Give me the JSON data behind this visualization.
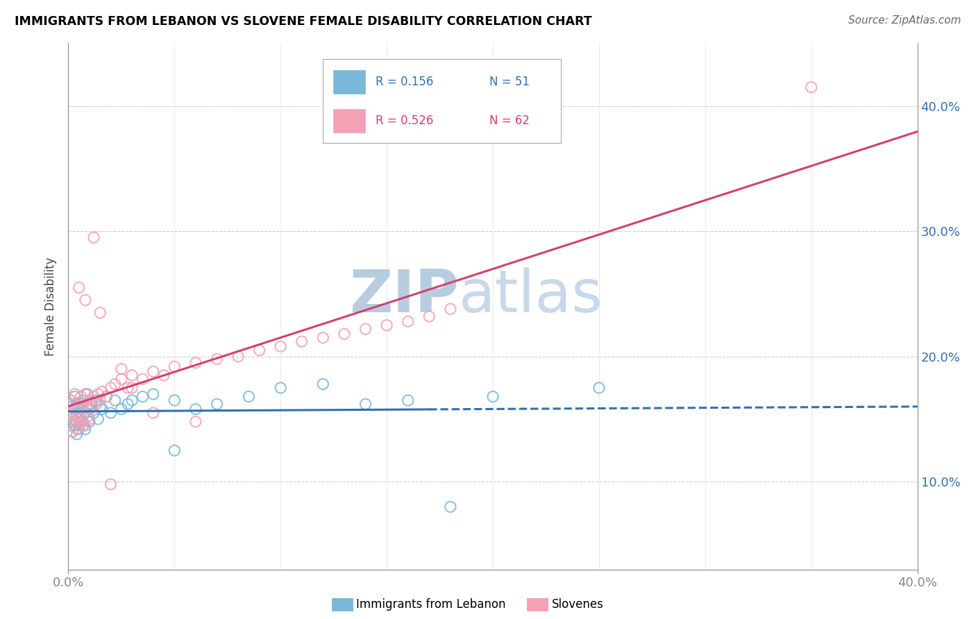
{
  "title": "IMMIGRANTS FROM LEBANON VS SLOVENE FEMALE DISABILITY CORRELATION CHART",
  "source": "Source: ZipAtlas.com",
  "ylabel": "Female Disability",
  "xmin": 0.0,
  "xmax": 0.4,
  "ymin": 0.03,
  "ymax": 0.45,
  "legend_blue_r": "R = 0.156",
  "legend_blue_n": "N = 51",
  "legend_pink_r": "R = 0.526",
  "legend_pink_n": "N = 62",
  "blue_color": "#7ab8d9",
  "pink_color": "#f4a0b5",
  "blue_line_color": "#3070b0",
  "pink_line_color": "#d44070",
  "watermark_zip": "ZIP",
  "watermark_atlas": "atlas",
  "watermark_color": "#c5d8ec",
  "blue_r": 0.156,
  "pink_r": 0.526,
  "blue_scatter_x": [
    0.001,
    0.001,
    0.001,
    0.002,
    0.002,
    0.002,
    0.003,
    0.003,
    0.003,
    0.004,
    0.004,
    0.004,
    0.005,
    0.005,
    0.005,
    0.006,
    0.006,
    0.007,
    0.007,
    0.008,
    0.008,
    0.009,
    0.009,
    0.01,
    0.01,
    0.011,
    0.012,
    0.013,
    0.014,
    0.015,
    0.016,
    0.018,
    0.02,
    0.022,
    0.025,
    0.028,
    0.03,
    0.035,
    0.04,
    0.05,
    0.06,
    0.07,
    0.085,
    0.1,
    0.12,
    0.14,
    0.16,
    0.2,
    0.25,
    0.18,
    0.05
  ],
  "blue_scatter_y": [
    0.145,
    0.155,
    0.165,
    0.14,
    0.15,
    0.16,
    0.145,
    0.158,
    0.168,
    0.138,
    0.148,
    0.162,
    0.142,
    0.152,
    0.163,
    0.148,
    0.158,
    0.145,
    0.165,
    0.142,
    0.155,
    0.16,
    0.17,
    0.148,
    0.158,
    0.162,
    0.155,
    0.165,
    0.15,
    0.16,
    0.158,
    0.168,
    0.155,
    0.165,
    0.158,
    0.162,
    0.165,
    0.168,
    0.17,
    0.165,
    0.158,
    0.162,
    0.168,
    0.175,
    0.178,
    0.162,
    0.165,
    0.168,
    0.175,
    0.08,
    0.125
  ],
  "pink_scatter_x": [
    0.001,
    0.001,
    0.001,
    0.002,
    0.002,
    0.002,
    0.003,
    0.003,
    0.003,
    0.004,
    0.004,
    0.005,
    0.005,
    0.006,
    0.006,
    0.007,
    0.007,
    0.008,
    0.008,
    0.009,
    0.009,
    0.01,
    0.01,
    0.011,
    0.012,
    0.013,
    0.014,
    0.015,
    0.016,
    0.018,
    0.02,
    0.022,
    0.025,
    0.028,
    0.03,
    0.035,
    0.04,
    0.045,
    0.05,
    0.06,
    0.07,
    0.08,
    0.09,
    0.1,
    0.11,
    0.12,
    0.13,
    0.14,
    0.15,
    0.16,
    0.17,
    0.18,
    0.04,
    0.06,
    0.005,
    0.008,
    0.012,
    0.02,
    0.03,
    0.025,
    0.35,
    0.015
  ],
  "pink_scatter_y": [
    0.148,
    0.155,
    0.165,
    0.14,
    0.153,
    0.162,
    0.148,
    0.158,
    0.17,
    0.142,
    0.152,
    0.145,
    0.16,
    0.15,
    0.168,
    0.148,
    0.162,
    0.145,
    0.17,
    0.152,
    0.16,
    0.15,
    0.165,
    0.16,
    0.168,
    0.162,
    0.17,
    0.165,
    0.172,
    0.168,
    0.175,
    0.178,
    0.182,
    0.175,
    0.185,
    0.182,
    0.188,
    0.185,
    0.192,
    0.195,
    0.198,
    0.2,
    0.205,
    0.208,
    0.212,
    0.215,
    0.218,
    0.222,
    0.225,
    0.228,
    0.232,
    0.238,
    0.155,
    0.148,
    0.255,
    0.245,
    0.295,
    0.098,
    0.175,
    0.19,
    0.415,
    0.235
  ]
}
